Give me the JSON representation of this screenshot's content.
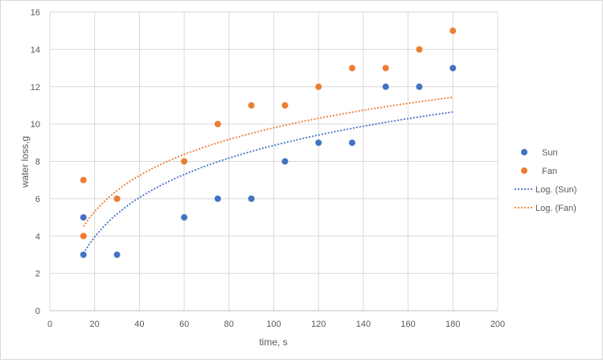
{
  "chart_data": {
    "type": "scatter",
    "title": "",
    "xlabel": "time, s",
    "ylabel": "water loss,g",
    "xlim": [
      0,
      200
    ],
    "ylim": [
      0,
      16
    ],
    "xticks": [
      0,
      20,
      40,
      60,
      80,
      100,
      120,
      140,
      160,
      180,
      200
    ],
    "yticks": [
      0,
      2,
      4,
      6,
      8,
      10,
      12,
      14,
      16
    ],
    "grid": true,
    "legend_position": "right",
    "series": [
      {
        "name": "Sun",
        "kind": "points",
        "color": "#4472c4",
        "x": [
          15,
          15,
          30,
          60,
          75,
          90,
          105,
          120,
          135,
          150,
          165,
          180
        ],
        "y": [
          5,
          3,
          3,
          5,
          6,
          6,
          8,
          9,
          9,
          12,
          12,
          13
        ]
      },
      {
        "name": "Fan",
        "kind": "points",
        "color": "#ed7d31",
        "x": [
          15,
          15,
          30,
          60,
          75,
          90,
          105,
          120,
          135,
          150,
          165,
          180
        ],
        "y": [
          7,
          4,
          6,
          8,
          10,
          11,
          11,
          12,
          13,
          13,
          14,
          15
        ]
      },
      {
        "name": "Log. (Sun)",
        "kind": "trendline",
        "color": "#4472c4",
        "x_range": [
          15,
          180
        ],
        "log_fit": {
          "a": -5.19,
          "b": 3.05
        }
      },
      {
        "name": "Log. (Fan)",
        "kind": "trendline",
        "color": "#ed7d31",
        "x_range": [
          15,
          180
        ],
        "log_fit": {
          "a": -3.05,
          "b": 2.79
        }
      }
    ]
  }
}
